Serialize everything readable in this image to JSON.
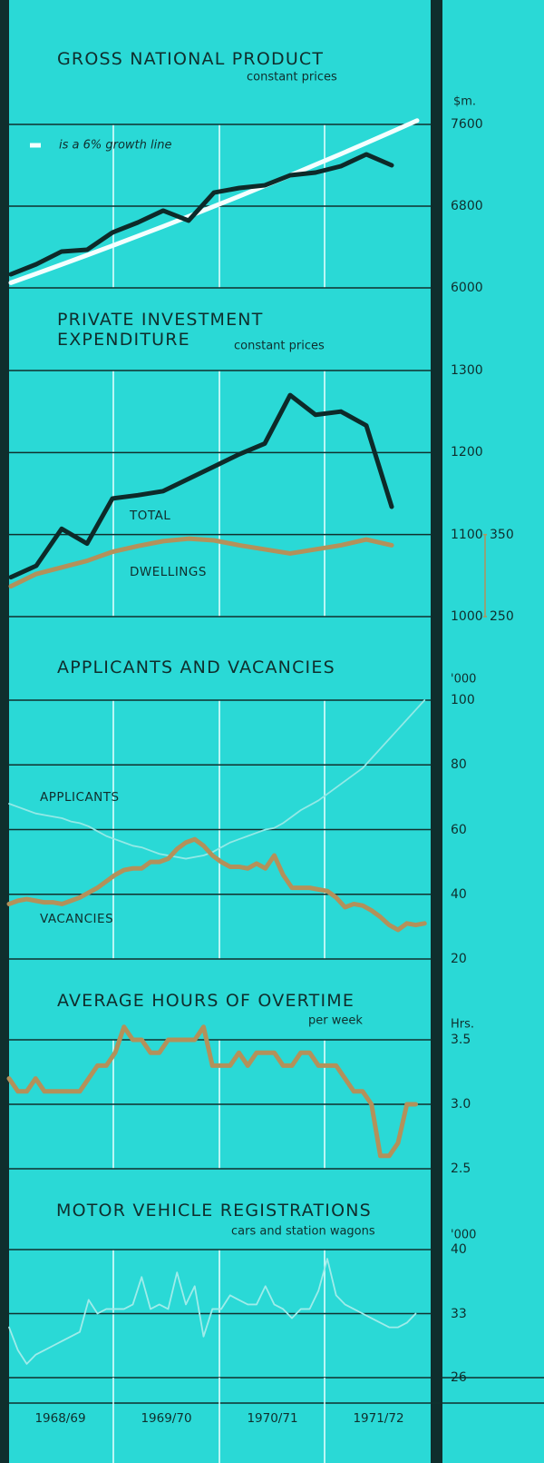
{
  "periods": [
    "1968/69",
    "1969/70",
    "1970/71",
    "1971/72"
  ],
  "chart_data": [
    {
      "type": "line",
      "title": "GROSS NATIONAL PRODUCT",
      "subtitle": "constant prices",
      "y_unit": "$m.",
      "ylim": [
        6000,
        7600
      ],
      "yticks": [
        6000,
        6800,
        7600
      ],
      "series": [
        {
          "name": "is a 6% growth line",
          "color": "#f4ffff",
          "values": [
            6050,
            6139,
            6229,
            6320,
            6413,
            6507,
            6602,
            6699,
            6798,
            6897,
            6999,
            7101,
            7206,
            7311,
            7418,
            7527,
            7638
          ]
        },
        {
          "color": "#0d2a29",
          "values": [
            6133,
            6231,
            6356,
            6373,
            6542,
            6640,
            6756,
            6658,
            6933,
            6978,
            7004,
            7102,
            7129,
            7191,
            7307,
            7200
          ]
        }
      ]
    },
    {
      "type": "line",
      "title": "PRIVATE INVESTMENT EXPENDITURE",
      "subtitle": "constant prices",
      "ylim": [
        1000,
        1300
      ],
      "yticks": [
        1000,
        1100,
        1200,
        1300
      ],
      "y2lim": [
        250,
        550
      ],
      "y2ticks": [
        250,
        350
      ],
      "series": [
        {
          "name": "TOTAL",
          "color": "#0d2a29",
          "values": [
            1048,
            1062,
            1107,
            1089,
            1144,
            1148,
            1153,
            1168,
            1183,
            1198,
            1211,
            1270,
            1246,
            1250,
            1233,
            1134
          ]
        },
        {
          "name": "DWELLINGS",
          "color": "#b3915a",
          "axis": "y2",
          "values": [
            287,
            302,
            310,
            318,
            329,
            336,
            342,
            345,
            343,
            337,
            332,
            327,
            332,
            337,
            344,
            337
          ]
        }
      ]
    },
    {
      "type": "line",
      "title": "APPLICANTS AND VACANCIES",
      "y_unit": "'000",
      "ylim": [
        20,
        100
      ],
      "yticks": [
        20,
        40,
        60,
        80,
        100
      ],
      "series": [
        {
          "name": "APPLICANTS",
          "color": "#93e9e6",
          "values": [
            68,
            67,
            66,
            65,
            64.5,
            64,
            63.5,
            62.5,
            62,
            61,
            59.5,
            58,
            57,
            56,
            55,
            54.5,
            53.5,
            52.5,
            52,
            51.5,
            51,
            51.5,
            52,
            53,
            54.5,
            56,
            57,
            58,
            59,
            60,
            60.5,
            62,
            64,
            66,
            67.5,
            69,
            71,
            73,
            75,
            77,
            79,
            82,
            85,
            88,
            91,
            94,
            97,
            100
          ]
        },
        {
          "name": "VACANCIES",
          "color": "#b3915a",
          "values": [
            37,
            38,
            38.5,
            38,
            37.5,
            37.5,
            37,
            38,
            39,
            40.5,
            42,
            44,
            46,
            47.5,
            48,
            48,
            50,
            50,
            51,
            54,
            56,
            57,
            55,
            52,
            50,
            48.5,
            48.5,
            48,
            49.5,
            48,
            52,
            46,
            42,
            42,
            42,
            41.5,
            41,
            39,
            36,
            37,
            36.5,
            35,
            33,
            30.5,
            29,
            31,
            30.5,
            31
          ]
        }
      ]
    },
    {
      "type": "line",
      "title": "AVERAGE HOURS OF OVERTIME",
      "subtitle": "per week",
      "y_unit": "Hrs.",
      "ylim": [
        2.5,
        3.5
      ],
      "yticks": [
        2.5,
        {
          "value": 3,
          "label": "3.0"
        },
        3.5
      ],
      "series": [
        {
          "color": "#b3915a",
          "values": [
            3.2,
            3.1,
            3.1,
            3.2,
            3.1,
            3.1,
            3.1,
            3.1,
            3.1,
            3.2,
            3.3,
            3.3,
            3.4,
            3.6,
            3.5,
            3.5,
            3.4,
            3.4,
            3.5,
            3.5,
            3.5,
            3.5,
            3.6,
            3.3,
            3.3,
            3.3,
            3.4,
            3.3,
            3.4,
            3.4,
            3.4,
            3.3,
            3.3,
            3.4,
            3.4,
            3.3,
            3.3,
            3.3,
            3.2,
            3.1,
            3.1,
            3.0,
            2.6,
            2.6,
            2.7,
            3.0,
            3.0
          ]
        }
      ]
    },
    {
      "type": "line",
      "title": "MOTOR VEHICLE REGISTRATIONS",
      "subtitle": "cars and station wagons",
      "y_unit": "'000",
      "ylim": [
        26,
        40
      ],
      "yticks": [
        26,
        33,
        40
      ],
      "series": [
        {
          "color": "#9fecea",
          "values": [
            31.5,
            29,
            27.5,
            28.5,
            29,
            29.5,
            30,
            30.5,
            31,
            34.5,
            33,
            33.5,
            33.5,
            33.5,
            34,
            37,
            33.5,
            34,
            33.5,
            37.5,
            34,
            36,
            30.5,
            33.5,
            33.5,
            35,
            34.5,
            34,
            34,
            36,
            34,
            33.5,
            32.5,
            33.5,
            33.5,
            35.5,
            39,
            35,
            34,
            33.5,
            33,
            32.5,
            32,
            31.5,
            31.5,
            32,
            33
          ]
        }
      ]
    }
  ]
}
